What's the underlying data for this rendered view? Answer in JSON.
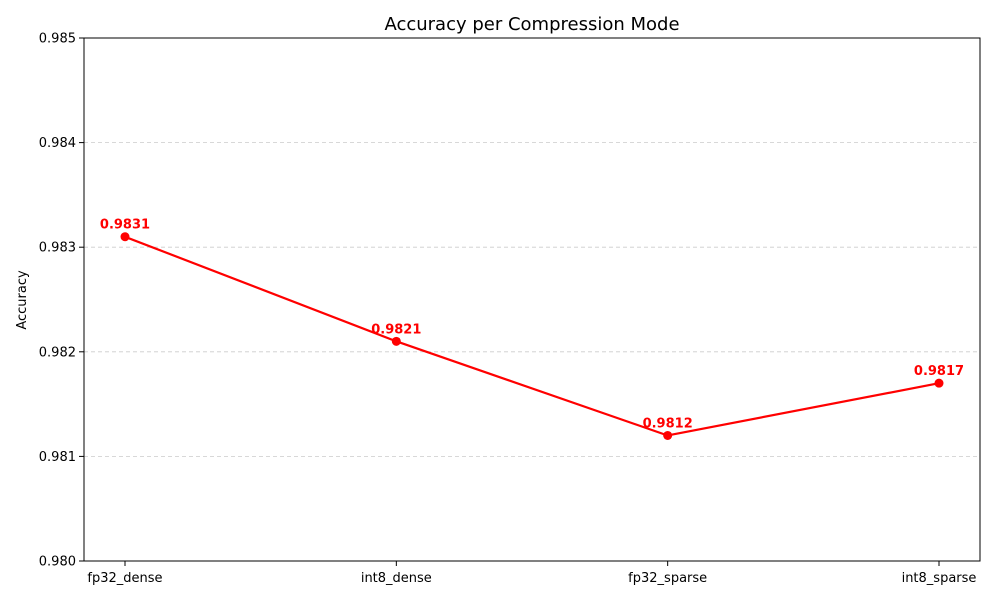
{
  "chart_data": {
    "type": "line",
    "title": "Accuracy per Compression Mode",
    "xlabel": "",
    "ylabel": "Accuracy",
    "categories": [
      "fp32_dense",
      "int8_dense",
      "fp32_sparse",
      "int8_sparse"
    ],
    "series": [
      {
        "values": [
          0.9831,
          0.9821,
          0.9812,
          0.9817
        ],
        "data_labels": [
          "0.9831",
          "0.9821",
          "0.9812",
          "0.9817"
        ],
        "color": "#ff0000"
      }
    ],
    "ylim": [
      0.98,
      0.985
    ],
    "yticks": [
      0.98,
      0.981,
      0.982,
      0.983,
      0.984,
      0.985
    ],
    "ytick_labels": [
      "0.980",
      "0.981",
      "0.982",
      "0.983",
      "0.984",
      "0.985"
    ],
    "grid": "y-dashed",
    "legend": "none"
  }
}
